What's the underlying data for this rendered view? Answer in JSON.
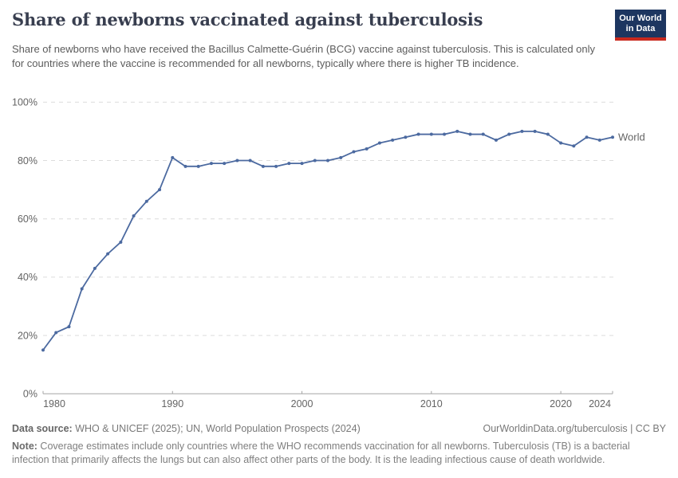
{
  "header": {
    "title": "Share of newborns vaccinated against tuberculosis",
    "subtitle": "Share of newborns who have received the Bacillus Calmette-Guérin (BCG) vaccine against tuberculosis. This is calculated only for countries where the vaccine is recommended for all newborns, typically where there is higher TB incidence.",
    "logo": {
      "line1": "Our World",
      "line2": "in Data",
      "bg_color": "#1d3660",
      "bar_color": "#c9291e"
    }
  },
  "chart_data": {
    "type": "line",
    "title": "Share of newborns vaccinated against tuberculosis",
    "xlabel": "",
    "ylabel": "",
    "xlim": [
      1980,
      2024
    ],
    "ylim": [
      0,
      100
    ],
    "x_ticks": [
      1980,
      1990,
      2000,
      2010,
      2020,
      2024
    ],
    "y_ticks": [
      0,
      20,
      40,
      60,
      80,
      100
    ],
    "y_tick_suffix": "%",
    "grid": "horizontal-dashed",
    "legend_position": "end-of-line-label",
    "x": [
      1980,
      1981,
      1982,
      1983,
      1984,
      1985,
      1986,
      1987,
      1988,
      1989,
      1990,
      1991,
      1992,
      1993,
      1994,
      1995,
      1996,
      1997,
      1998,
      1999,
      2000,
      2001,
      2002,
      2003,
      2004,
      2005,
      2006,
      2007,
      2008,
      2009,
      2010,
      2011,
      2012,
      2013,
      2014,
      2015,
      2016,
      2017,
      2018,
      2019,
      2020,
      2021,
      2022,
      2023,
      2024
    ],
    "series": [
      {
        "name": "World",
        "color": "#4c6aa0",
        "values": [
          15,
          21,
          23,
          36,
          43,
          48,
          52,
          61,
          66,
          70,
          81,
          78,
          78,
          79,
          79,
          80,
          80,
          78,
          78,
          79,
          79,
          80,
          80,
          81,
          83,
          84,
          86,
          87,
          88,
          89,
          89,
          89,
          90,
          89,
          89,
          87,
          89,
          90,
          90,
          89,
          86,
          85,
          88,
          87,
          88
        ]
      }
    ],
    "colors": {
      "grid": "#dcdcdc",
      "axis": "#a5a5a5",
      "tick_label": "#646464"
    }
  },
  "footer": {
    "datasource_label": "Data source:",
    "datasource_text": " WHO & UNICEF (2025); UN, World Population Prospects (2024)",
    "link": "OurWorldinData.org/tuberculosis | CC BY",
    "note_label": "Note:",
    "note_text": " Coverage estimates include only countries where the WHO recommends vaccination for all newborns. Tuberculosis (TB) is a bacterial infection that primarily affects the lungs but can also affect other parts of the body. It is the leading infectious cause of death worldwide."
  }
}
